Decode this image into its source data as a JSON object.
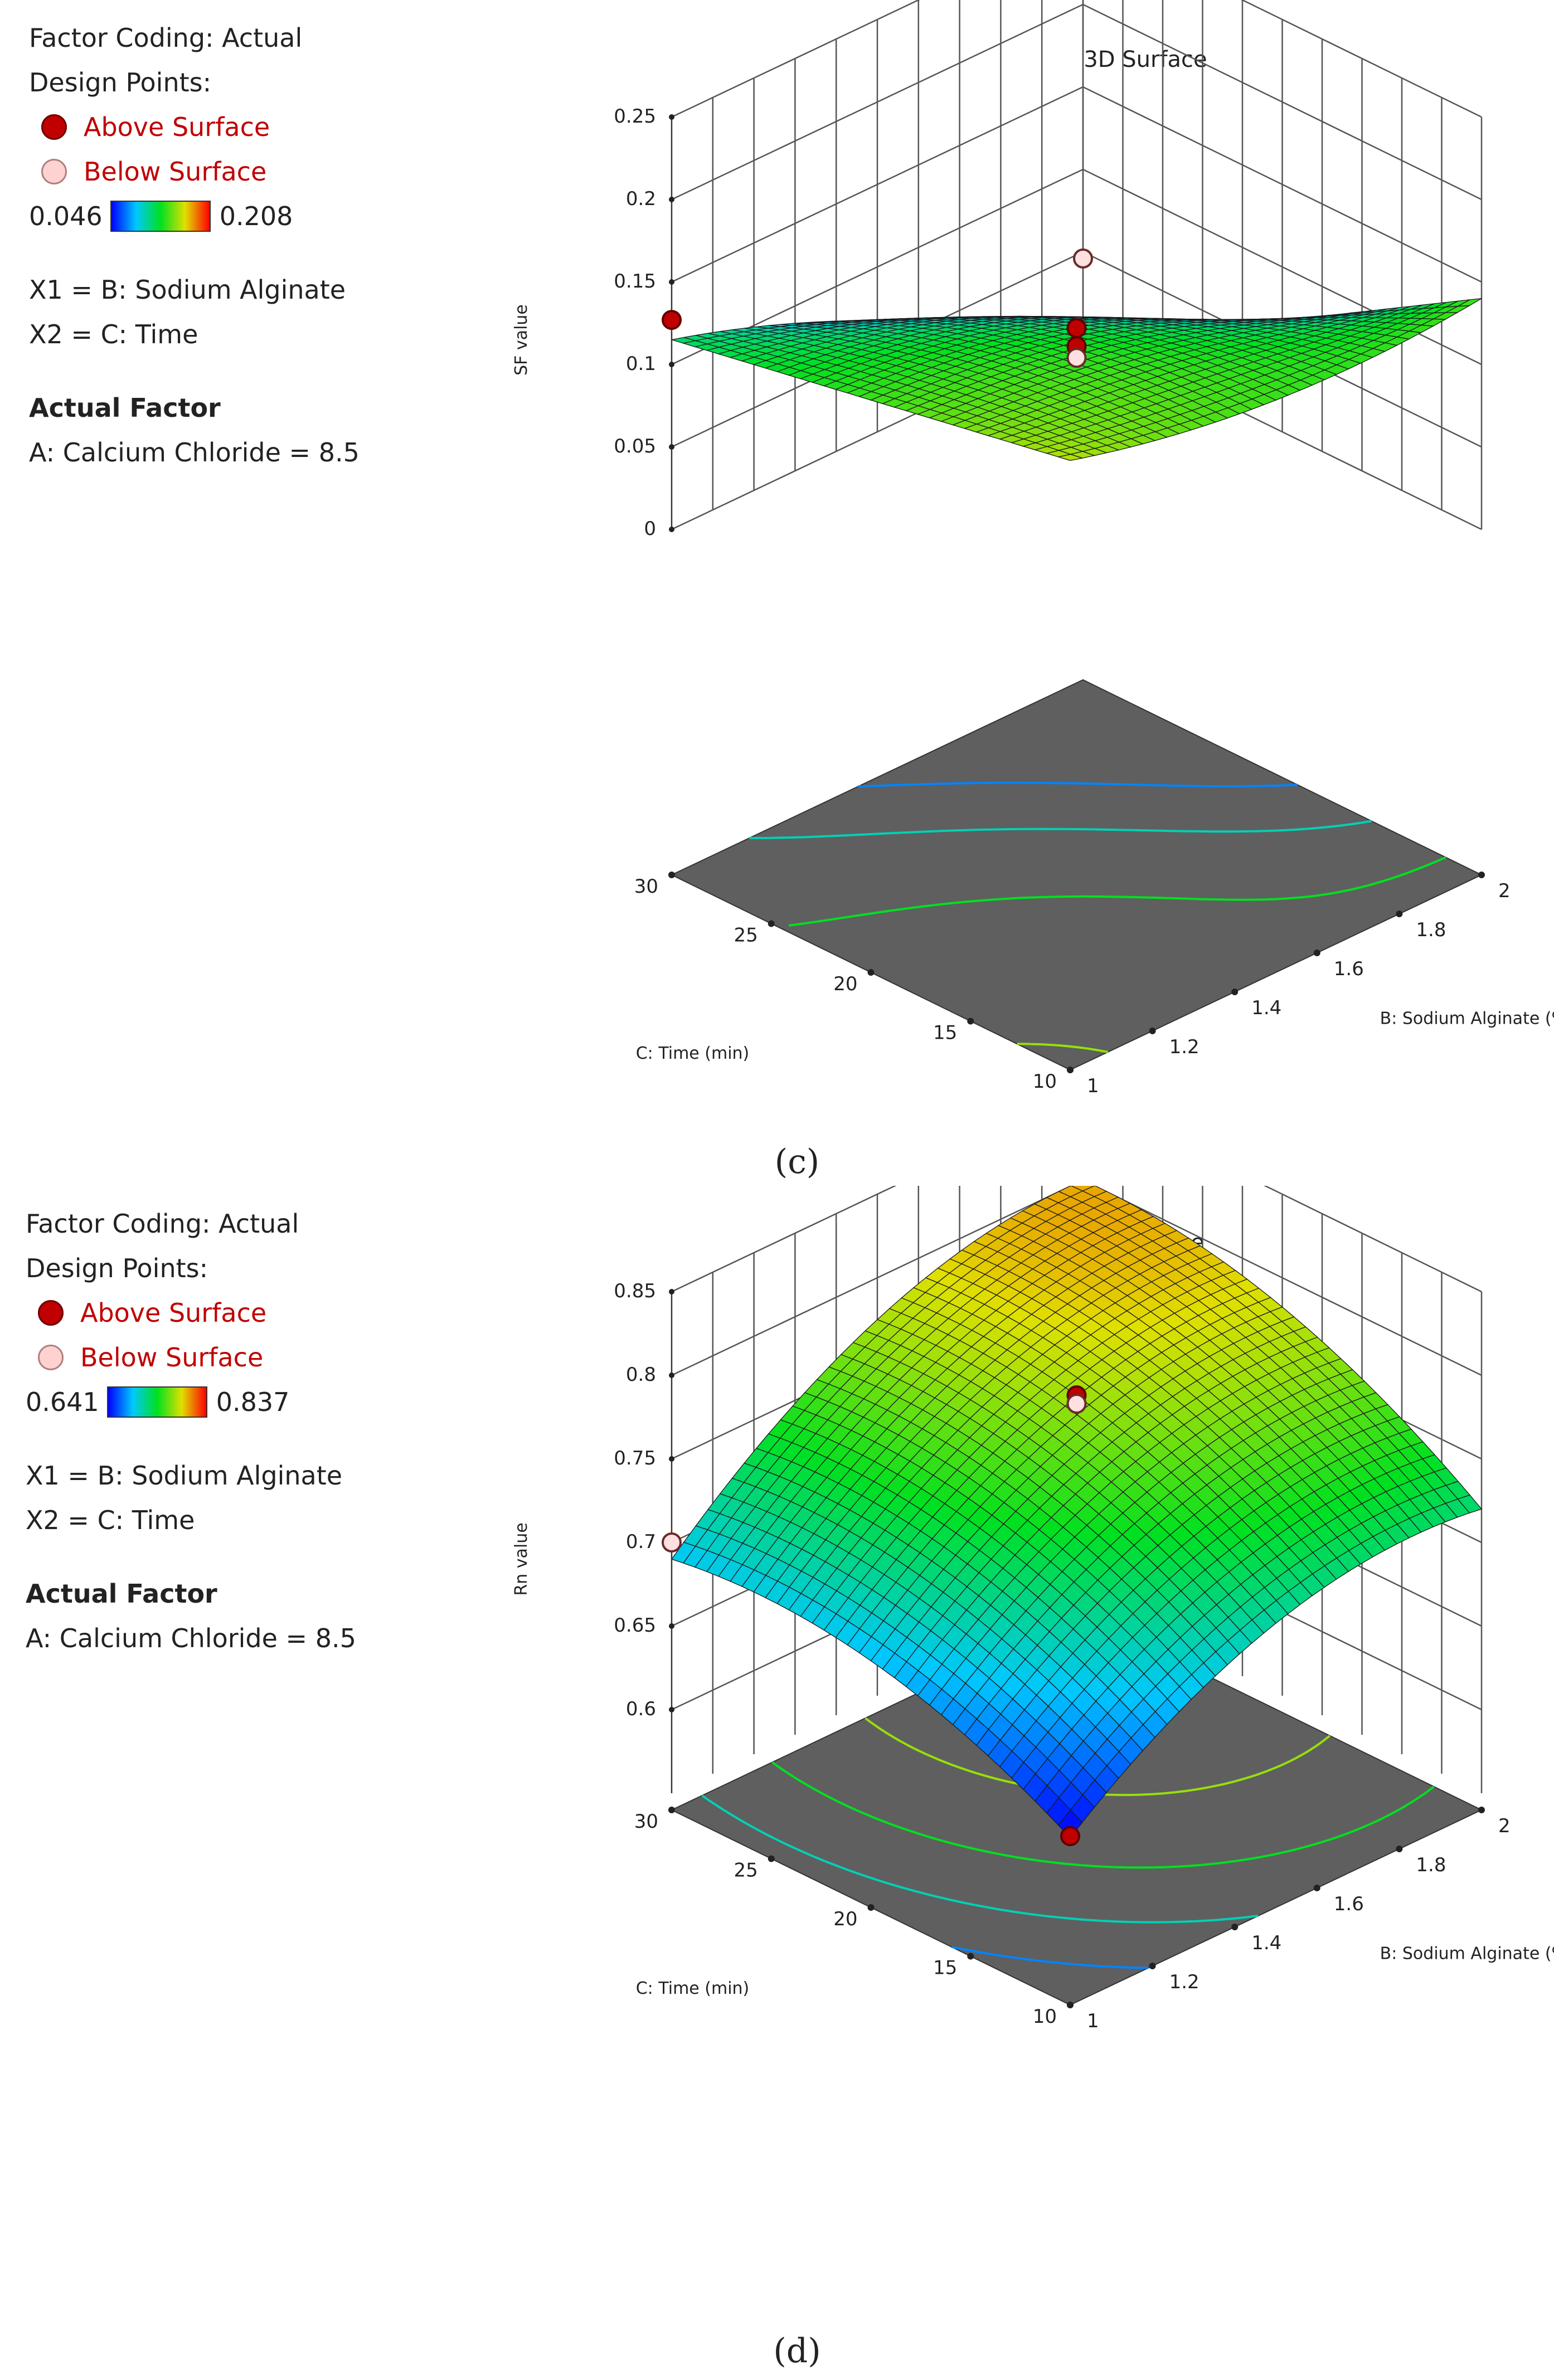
{
  "chart_data": [
    {
      "type": "surface3d",
      "panel": "c",
      "caption": "(c)",
      "title": "3D Surface",
      "legend": {
        "factor_coding": "Factor Coding: Actual",
        "design_points": "Design Points:",
        "above_label": "Above Surface",
        "below_label": "Below Surface",
        "color_min": "0.046",
        "color_max": "0.208",
        "x1_label": "X1 = B: Sodium Alginate",
        "x2_label": "X2 = C: Time",
        "actual_factor_title": "Actual Factor",
        "actual_factor": "A: Calcium Chloride = 8.5"
      },
      "zlabel": "SF value",
      "xlabel": "B: Sodium Alginate (%)",
      "ylabel": "C: Time (min)",
      "z_ticks": [
        "0",
        "0.05",
        "0.1",
        "0.15",
        "0.2",
        "0.25"
      ],
      "x_ticks": [
        "1",
        "1.2",
        "1.4",
        "1.6",
        "1.8",
        "2"
      ],
      "y_ticks": [
        "10",
        "15",
        "20",
        "25",
        "30"
      ],
      "zlim": [
        0,
        0.25
      ],
      "xlim": [
        1,
        2
      ],
      "ylim": [
        10,
        30
      ],
      "color_range": [
        0.046,
        0.208
      ],
      "model": {
        "x_scale": 1.0,
        "y_scale": 1.0,
        "surface_corners": {
          "b1_t10": 0.2,
          "b2_t10": 0.07,
          "b1_t30": 0.125,
          "b2_t30": 0.045
        }
      },
      "design_points": [
        {
          "b": 1.0,
          "t": 30,
          "z": 0.127,
          "position": "above"
        },
        {
          "b": 1.5,
          "t": 20,
          "z": 0.122,
          "position": "above"
        },
        {
          "b": 1.5,
          "t": 20,
          "z": 0.111,
          "position": "above"
        },
        {
          "b": 1.5,
          "t": 20,
          "z": 0.104,
          "position": "below"
        },
        {
          "b": 2.0,
          "t": 30,
          "z": 0.046,
          "position": "below"
        }
      ]
    },
    {
      "type": "surface3d",
      "panel": "d",
      "caption": "(d)",
      "title": "3D Surface",
      "legend": {
        "factor_coding": "Factor Coding: Actual",
        "design_points": "Design Points:",
        "above_label": "Above Surface",
        "below_label": "Below Surface",
        "color_min": "0.641",
        "color_max": "0.837",
        "x1_label": "X1 = B: Sodium Alginate",
        "x2_label": "X2 = C: Time",
        "actual_factor_title": "Actual Factor",
        "actual_factor": "A: Calcium Chloride = 8.5"
      },
      "zlabel": "Rn value",
      "xlabel": "B: Sodium Alginate (%)",
      "ylabel": "C: Time (min)",
      "z_ticks": [
        "0.6",
        "0.65",
        "0.7",
        "0.75",
        "0.8",
        "0.85"
      ],
      "x_ticks": [
        "1",
        "1.2",
        "1.4",
        "1.6",
        "1.8",
        "2"
      ],
      "y_ticks": [
        "10",
        "15",
        "20",
        "25",
        "30"
      ],
      "zlim": [
        0.55,
        0.85
      ],
      "xlim": [
        1,
        2
      ],
      "ylim": [
        10,
        30
      ],
      "color_range": [
        0.641,
        0.837
      ],
      "design_points": [
        {
          "b": 1.0,
          "t": 30,
          "z": 0.7,
          "position": "below"
        },
        {
          "b": 1.0,
          "t": 10,
          "z": 0.641,
          "position": "above"
        },
        {
          "b": 1.5,
          "t": 20,
          "z": 0.788,
          "position": "above"
        },
        {
          "b": 1.5,
          "t": 20,
          "z": 0.783,
          "position": "below"
        },
        {
          "b": 2.0,
          "t": 30,
          "z": 0.805,
          "position": "below"
        }
      ]
    }
  ]
}
